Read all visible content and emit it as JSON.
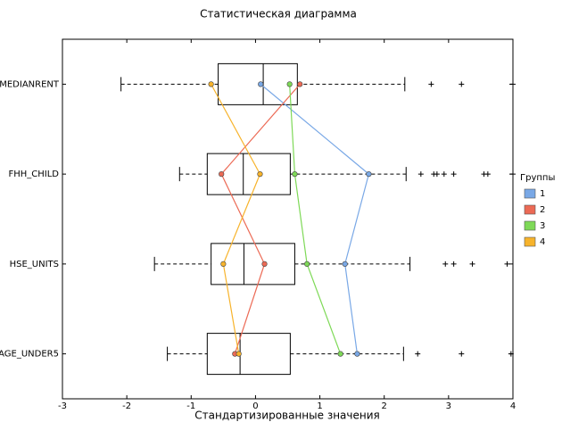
{
  "chart_data": {
    "type": "boxplot",
    "title": "Статистическая диаграмма",
    "xlabel": "Стандартизированные значения",
    "categories": [
      "MEDIANRENT",
      "FHH_CHILD",
      "HSE_UNITS",
      "AGE_UNDER5"
    ],
    "boxes": [
      {
        "whislo": -2.09,
        "q1": -0.58,
        "med": 0.12,
        "q3": 0.65,
        "whishi": 2.32,
        "fliers": [
          2.73,
          3.2,
          4.0
        ]
      },
      {
        "whislo": -1.18,
        "q1": -0.75,
        "med": -0.19,
        "q3": 0.54,
        "whishi": 2.34,
        "fliers": [
          2.57,
          2.77,
          2.82,
          2.93,
          3.08,
          3.55,
          3.61,
          4.0
        ]
      },
      {
        "whislo": -1.57,
        "q1": -0.69,
        "med": -0.18,
        "q3": 0.61,
        "whishi": 2.4,
        "fliers": [
          2.95,
          3.08,
          3.37,
          3.91
        ]
      },
      {
        "whislo": -1.37,
        "q1": -0.75,
        "med": -0.24,
        "q3": 0.54,
        "whishi": 2.3,
        "fliers": [
          2.52,
          3.2,
          3.97
        ]
      }
    ],
    "legend_title": "Группы",
    "series": [
      {
        "name": "1",
        "color": "#79a8e6",
        "values": [
          0.08,
          1.76,
          1.39,
          1.58
        ]
      },
      {
        "name": "2",
        "color": "#ec6a55",
        "values": [
          0.69,
          -0.53,
          0.14,
          -0.32
        ]
      },
      {
        "name": "3",
        "color": "#7ed957",
        "values": [
          0.53,
          0.61,
          0.8,
          1.32
        ]
      },
      {
        "name": "4",
        "color": "#f7b32b",
        "values": [
          -0.69,
          0.07,
          -0.5,
          -0.26
        ]
      }
    ],
    "xlim": [
      -3,
      4
    ],
    "xticks": [
      -3,
      -2,
      -1,
      0,
      1,
      2,
      3,
      4
    ],
    "legend": "right"
  }
}
